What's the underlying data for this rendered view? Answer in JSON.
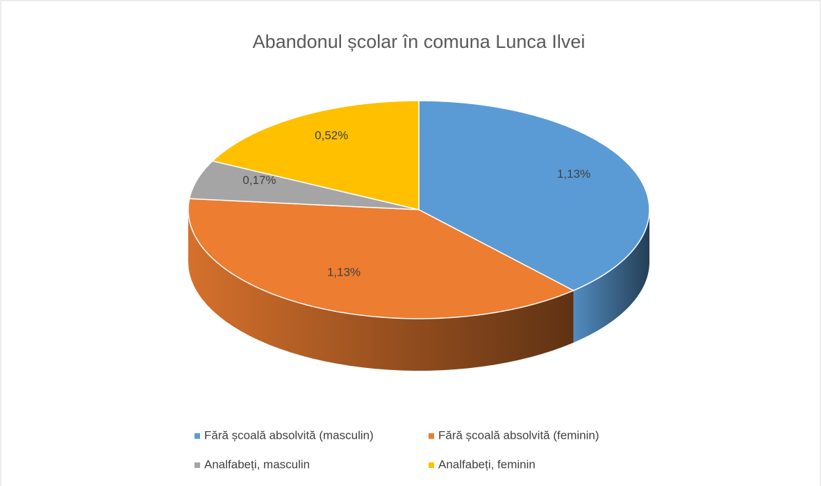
{
  "chart_data": {
    "type": "pie",
    "title": "Abandonul școlar în comuna Lunca Ilvei",
    "categories": [
      "Fără școală absolvită (masculin)",
      "Fără școală absolvită (feminin)",
      "Analfabeți, masculin",
      "Analfabeți, feminin"
    ],
    "values": [
      1.13,
      1.13,
      0.17,
      0.52
    ],
    "value_labels": [
      "1,13%",
      "1,13%",
      "0,17%",
      "0,52%"
    ],
    "colors": [
      "#5b9bd5",
      "#ed7d31",
      "#a5a5a5",
      "#ffc000"
    ],
    "legend": "bottom"
  }
}
